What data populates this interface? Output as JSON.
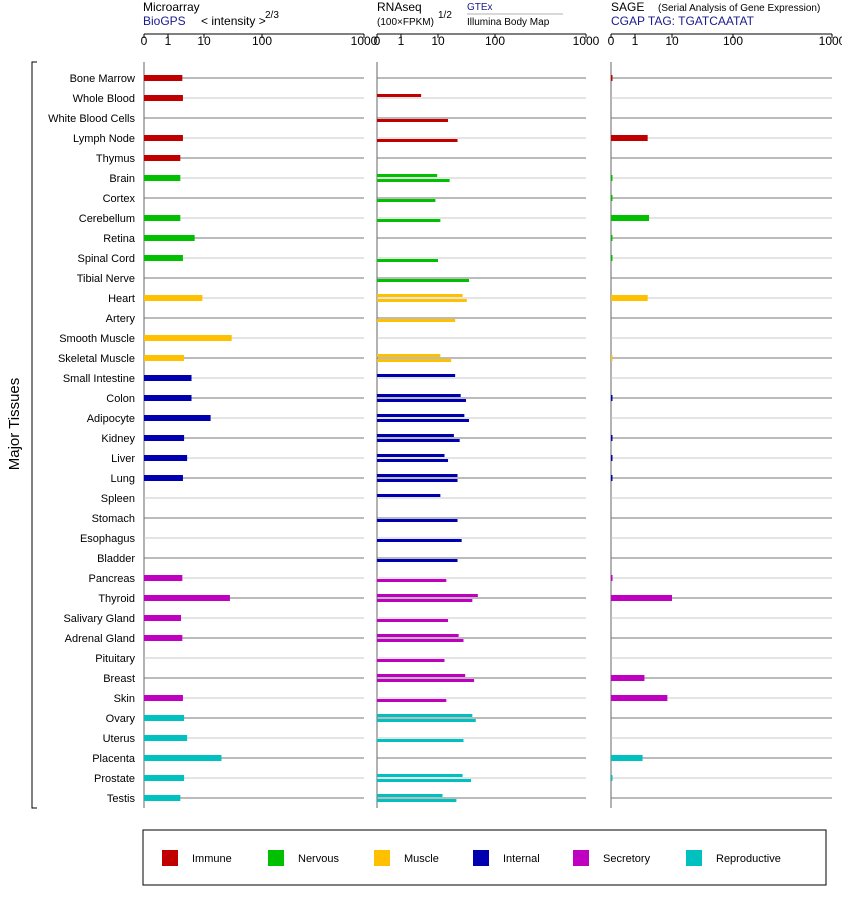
{
  "panels": {
    "microarray": {
      "title": "Microarray",
      "source": "BioGPS",
      "unit_label": "< intensity >",
      "unit_exp": "2/3"
    },
    "rnaseq": {
      "title": "RNAseq",
      "unit_label": "(100×FPKM)",
      "unit_exp": "1/2",
      "source1": "GTEx",
      "source2": "Illumina Body Map"
    },
    "sage": {
      "title": "SAGE",
      "subtitle": "(Serial Analysis of Gene Expression)",
      "source": "CGAP TAG: TGATCAATAT"
    }
  },
  "y_axis_label": "Major Tissues",
  "tick_labels": [
    "0",
    "1",
    "10",
    "100",
    "1000"
  ],
  "legend": [
    {
      "name": "Immune",
      "color": "#c00000"
    },
    {
      "name": "Nervous",
      "color": "#00c000"
    },
    {
      "name": "Muscle",
      "color": "#ffc000"
    },
    {
      "name": "Internal",
      "color": "#0000b0"
    },
    {
      "name": "Secretory",
      "color": "#c000c0"
    },
    {
      "name": "Reproductive",
      "color": "#00c0c0"
    }
  ],
  "chart_data": {
    "type": "bar",
    "x_scale": "root-ish (0, 1, 10, 100, 1000)",
    "xlim": [
      0,
      1000
    ],
    "tissues": [
      {
        "name": "Bone Marrow",
        "group": "Immune",
        "microarray": 2.5,
        "gtex": null,
        "ibm": null,
        "sage": 0.02
      },
      {
        "name": "Whole Blood",
        "group": "Immune",
        "microarray": 2.6,
        "gtex": 3.5,
        "ibm": null,
        "sage": null
      },
      {
        "name": "White Blood Cells",
        "group": "Immune",
        "microarray": null,
        "gtex": null,
        "ibm": 15,
        "sage": null
      },
      {
        "name": "Lymph Node",
        "group": "Immune",
        "microarray": 2.6,
        "gtex": null,
        "ibm": 22,
        "sage": 2.2
      },
      {
        "name": "Thymus",
        "group": "Immune",
        "microarray": 2.2,
        "gtex": null,
        "ibm": null,
        "sage": null
      },
      {
        "name": "Brain",
        "group": "Nervous",
        "microarray": 2.2,
        "gtex": 9.5,
        "ibm": 16,
        "sage": 0.01
      },
      {
        "name": "Cortex",
        "group": "Nervous",
        "microarray": null,
        "gtex": null,
        "ibm": 8.5,
        "sage": 0.01
      },
      {
        "name": "Cerebellum",
        "group": "Nervous",
        "microarray": 2.2,
        "gtex": null,
        "ibm": 11,
        "sage": 2.4
      },
      {
        "name": "Retina",
        "group": "Nervous",
        "microarray": 5.5,
        "gtex": null,
        "ibm": null,
        "sage": 0.01
      },
      {
        "name": "Spinal Cord",
        "group": "Nervous",
        "microarray": 2.6,
        "gtex": null,
        "ibm": 10,
        "sage": 0.01
      },
      {
        "name": "Tibial Nerve",
        "group": "Nervous",
        "microarray": null,
        "gtex": null,
        "ibm": 35,
        "sage": null
      },
      {
        "name": "Heart",
        "group": "Muscle",
        "microarray": 9,
        "gtex": 27,
        "ibm": 32,
        "sage": 2.2
      },
      {
        "name": "Artery",
        "group": "Muscle",
        "microarray": null,
        "gtex": null,
        "ibm": 20,
        "sage": null
      },
      {
        "name": "Smooth Muscle",
        "group": "Muscle",
        "microarray": 30,
        "gtex": null,
        "ibm": null,
        "sage": null
      },
      {
        "name": "Skeletal Muscle",
        "group": "Muscle",
        "microarray": 2.8,
        "gtex": 11,
        "ibm": 17,
        "sage": 0.01
      },
      {
        "name": "Small Intestine",
        "group": "Internal",
        "microarray": 4.5,
        "gtex": 20,
        "ibm": null,
        "sage": null
      },
      {
        "name": "Colon",
        "group": "Internal",
        "microarray": 4.5,
        "gtex": 25,
        "ibm": 31,
        "sage": 0.01
      },
      {
        "name": "Adipocyte",
        "group": "Internal",
        "microarray": 13,
        "gtex": 29,
        "ibm": 35,
        "sage": null
      },
      {
        "name": "Kidney",
        "group": "Internal",
        "microarray": 2.8,
        "gtex": 19,
        "ibm": 24,
        "sage": 0.01
      },
      {
        "name": "Liver",
        "group": "Internal",
        "microarray": 3.4,
        "gtex": 13,
        "ibm": 15,
        "sage": 0.01
      },
      {
        "name": "Lung",
        "group": "Internal",
        "microarray": 2.6,
        "gtex": 22,
        "ibm": 22,
        "sage": 0.01
      },
      {
        "name": "Spleen",
        "group": "Internal",
        "microarray": null,
        "gtex": 11,
        "ibm": null,
        "sage": null
      },
      {
        "name": "Stomach",
        "group": "Internal",
        "microarray": null,
        "gtex": null,
        "ibm": 22,
        "sage": null
      },
      {
        "name": "Esophagus",
        "group": "Internal",
        "microarray": null,
        "gtex": null,
        "ibm": 26,
        "sage": null
      },
      {
        "name": "Bladder",
        "group": "Internal",
        "microarray": null,
        "gtex": null,
        "ibm": 22,
        "sage": null
      },
      {
        "name": "Pancreas",
        "group": "Secretory",
        "microarray": 2.5,
        "gtex": null,
        "ibm": 14,
        "sage": 0.01
      },
      {
        "name": "Thyroid",
        "group": "Secretory",
        "microarray": 28,
        "gtex": 50,
        "ibm": 40,
        "sage": 10
      },
      {
        "name": "Salivary Gland",
        "group": "Secretory",
        "microarray": 2.3,
        "gtex": null,
        "ibm": 15,
        "sage": null
      },
      {
        "name": "Adrenal Gland",
        "group": "Secretory",
        "microarray": 2.5,
        "gtex": 23,
        "ibm": 28,
        "sage": null
      },
      {
        "name": "Pituitary",
        "group": "Secretory",
        "microarray": null,
        "gtex": null,
        "ibm": 13,
        "sage": null
      },
      {
        "name": "Breast",
        "group": "Secretory",
        "microarray": null,
        "gtex": 30,
        "ibm": 43,
        "sage": 1.8
      },
      {
        "name": "Skin",
        "group": "Secretory",
        "microarray": 2.6,
        "gtex": null,
        "ibm": 14,
        "sage": 7.5
      },
      {
        "name": "Ovary",
        "group": "Reproductive",
        "microarray": 2.8,
        "gtex": 40,
        "ibm": 46,
        "sage": null
      },
      {
        "name": "Uterus",
        "group": "Reproductive",
        "microarray": 3.4,
        "gtex": null,
        "ibm": 28,
        "sage": null
      },
      {
        "name": "Placenta",
        "group": "Reproductive",
        "microarray": 20,
        "gtex": null,
        "ibm": null,
        "sage": 1.6
      },
      {
        "name": "Prostate",
        "group": "Reproductive",
        "microarray": 2.8,
        "gtex": 27,
        "ibm": 38,
        "sage": 0.01
      },
      {
        "name": "Testis",
        "group": "Reproductive",
        "microarray": 2.2,
        "gtex": 12,
        "ibm": 21,
        "sage": null
      }
    ]
  }
}
